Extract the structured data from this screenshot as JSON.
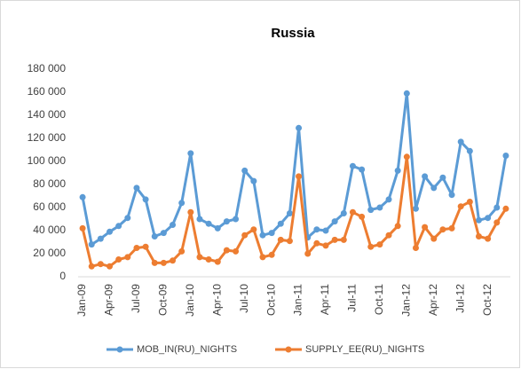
{
  "chart_data": {
    "type": "line",
    "title": "Russia",
    "categories": [
      "Jan-09",
      null,
      null,
      "Apr-09",
      null,
      null,
      "Jul-09",
      null,
      null,
      "Oct-09",
      null,
      null,
      "Jan-10",
      null,
      null,
      "Apr-10",
      null,
      null,
      "Jul-10",
      null,
      null,
      "Oct-10",
      null,
      null,
      "Jan-11",
      null,
      null,
      "Apr-11",
      null,
      null,
      "Jul-11",
      null,
      null,
      "Oct-11",
      null,
      null,
      "Jan-12",
      null,
      null,
      "Apr-12",
      null,
      null,
      "Jul-12",
      null,
      null,
      "Oct-12",
      null,
      null
    ],
    "series": [
      {
        "name": "MOB_IN(RU)_NIGHTS",
        "color": "#5b9bd5",
        "values": [
          69000,
          28000,
          33000,
          39000,
          44000,
          51000,
          77000,
          67000,
          35000,
          38000,
          45000,
          64000,
          107000,
          50000,
          46000,
          42000,
          48000,
          50000,
          92000,
          83000,
          36000,
          38000,
          46000,
          55000,
          129000,
          34000,
          41000,
          40000,
          48000,
          55000,
          96000,
          93000,
          58000,
          60000,
          67000,
          92000,
          159000,
          59000,
          87000,
          77000,
          86000,
          71000,
          117000,
          109000,
          49000,
          51000,
          60000,
          105000
        ]
      },
      {
        "name": "SUPPLY_EE(RU)_NIGHTS",
        "color": "#ed7d31",
        "values": [
          42000,
          9000,
          11000,
          9000,
          15000,
          17000,
          25000,
          26000,
          12000,
          12000,
          14000,
          22000,
          56000,
          17000,
          15000,
          13000,
          23000,
          22000,
          36000,
          41000,
          17000,
          19000,
          32000,
          31000,
          87000,
          20000,
          29000,
          27000,
          32000,
          32000,
          56000,
          52000,
          26000,
          28000,
          36000,
          44000,
          104000,
          25000,
          43000,
          33000,
          41000,
          42000,
          61000,
          65000,
          35000,
          33000,
          47000,
          59000
        ]
      }
    ],
    "ylim": [
      0,
      180000
    ],
    "yticks": [
      0,
      {
        "value": 20000,
        "label": "20 000"
      },
      {
        "value": 40000,
        "label": "40 000"
      },
      {
        "value": 60000,
        "label": "60 000"
      },
      {
        "value": 80000,
        "label": "80 000"
      },
      {
        "value": 100000,
        "label": "100 000"
      },
      {
        "value": 120000,
        "label": "120 000"
      },
      {
        "value": 140000,
        "label": "140 000"
      },
      {
        "value": 160000,
        "label": "160 000"
      },
      {
        "value": 180000,
        "label": "180 000"
      }
    ],
    "grid": false,
    "legend": "bottom"
  }
}
